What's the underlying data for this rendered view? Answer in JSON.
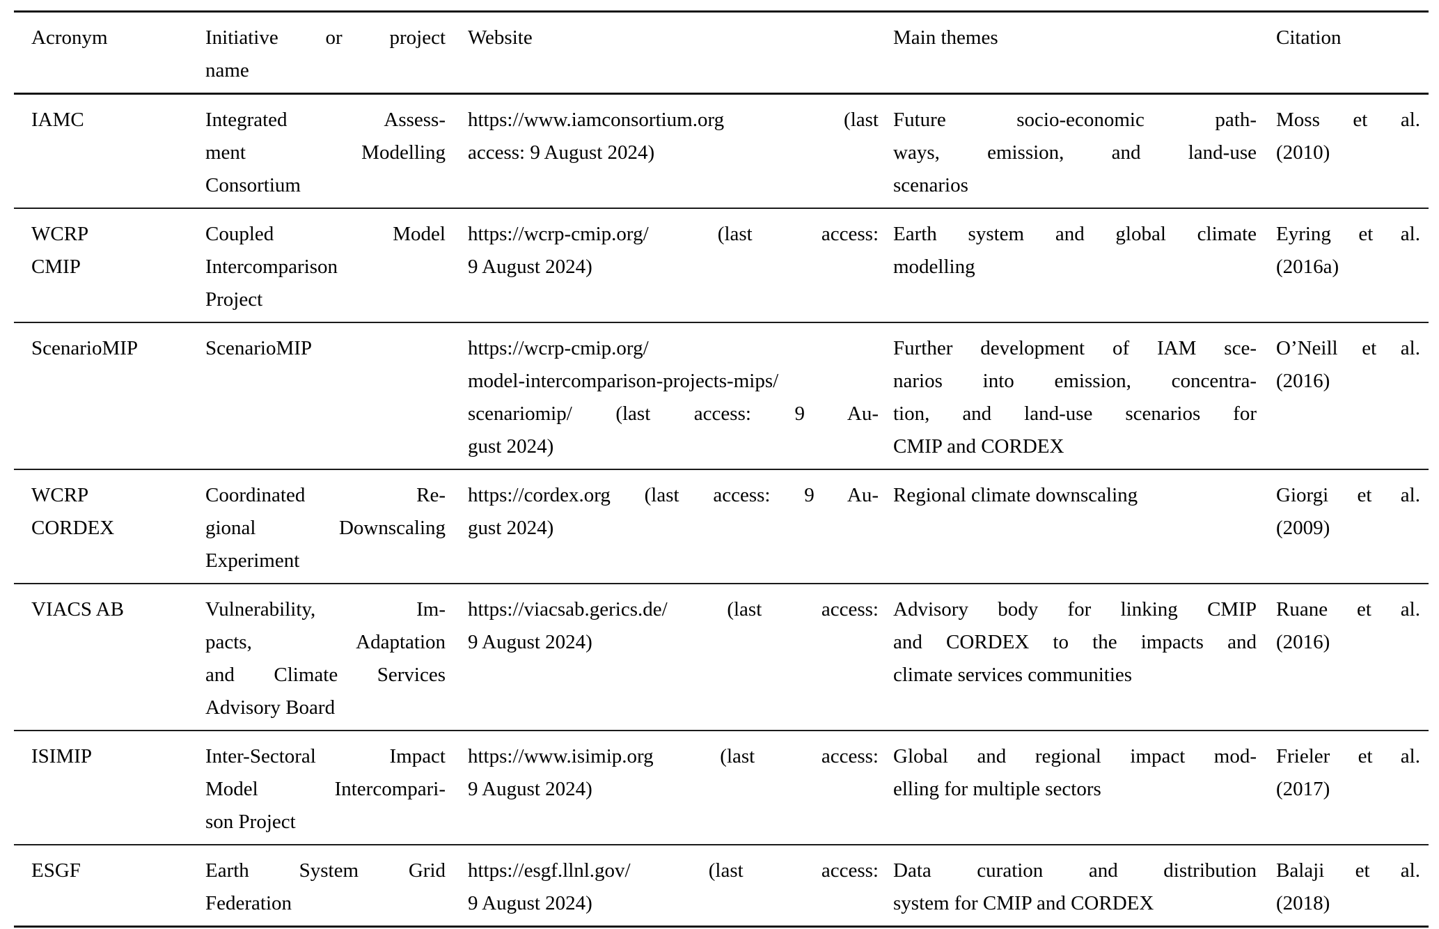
{
  "style": {
    "background": "#ffffff",
    "text_color": "#000000",
    "rule_color": "#1a1a1a"
  },
  "table": {
    "header": {
      "acronym": "Acronym",
      "name": [
        "Initiative or project",
        "name"
      ],
      "website": "Website",
      "themes": "Main themes",
      "citation": "Citation"
    },
    "rows": [
      {
        "acronym": "IAMC",
        "name": [
          "Integrated Assess-",
          "ment Modelling",
          "Consortium"
        ],
        "website": [
          "https://www.iamconsortium.org (last",
          "access: 9 August 2024)"
        ],
        "themes": [
          "Future socio-economic path-",
          "ways, emission, and land-use",
          "scenarios"
        ],
        "citation": [
          "Moss et al.",
          "(2010)"
        ]
      },
      {
        "acronym": [
          "WCRP",
          "CMIP"
        ],
        "name": [
          "Coupled Model",
          "Intercomparison",
          "Project"
        ],
        "website": [
          "https://wcrp-cmip.org/ (last access:",
          "9 August 2024)"
        ],
        "themes": [
          "Earth system and global climate",
          "modelling"
        ],
        "citation": [
          "Eyring et al.",
          "(2016a)"
        ]
      },
      {
        "acronym": "ScenarioMIP",
        "name": "ScenarioMIP",
        "website": [
          "https://wcrp-cmip.org/",
          "model-intercomparison-projects-mips/",
          "scenariomip/ (last access: 9 Au-",
          "gust 2024)"
        ],
        "themes": [
          "Further development of IAM sce-",
          "narios into emission, concentra-",
          "tion, and land-use scenarios for",
          "CMIP and CORDEX"
        ],
        "citation": [
          "O’Neill et al.",
          "(2016)"
        ]
      },
      {
        "acronym": [
          "WCRP",
          "CORDEX"
        ],
        "name": [
          "Coordinated Re-",
          "gional Downscaling",
          "Experiment"
        ],
        "website": [
          "https://cordex.org (last access: 9 Au-",
          "gust 2024)"
        ],
        "themes": "Regional climate downscaling",
        "citation": [
          "Giorgi et al.",
          "(2009)"
        ]
      },
      {
        "acronym": "VIACS AB",
        "name": [
          "Vulnerability, Im-",
          "pacts, Adaptation",
          "and Climate Services",
          "Advisory Board"
        ],
        "website": [
          "https://viacsab.gerics.de/ (last access:",
          "9 August 2024)"
        ],
        "themes": [
          "Advisory body for linking CMIP",
          "and CORDEX to the impacts and",
          "climate services communities"
        ],
        "citation": [
          "Ruane et al.",
          "(2016)"
        ]
      },
      {
        "acronym": "ISIMIP",
        "name": [
          "Inter-Sectoral Impact",
          "Model Intercompari-",
          "son Project"
        ],
        "website": [
          "https://www.isimip.org (last access:",
          "9 August 2024)"
        ],
        "themes": [
          "Global and regional impact mod-",
          "elling for multiple sectors"
        ],
        "citation": [
          "Frieler et al.",
          "(2017)"
        ]
      },
      {
        "acronym": "ESGF",
        "name": [
          "Earth System Grid",
          "Federation"
        ],
        "website": [
          "https://esgf.llnl.gov/ (last access:",
          "9 August 2024)"
        ],
        "themes": [
          "Data curation and distribution",
          "system for CMIP and CORDEX"
        ],
        "citation": [
          "Balaji et al.",
          "(2018)"
        ]
      }
    ]
  }
}
